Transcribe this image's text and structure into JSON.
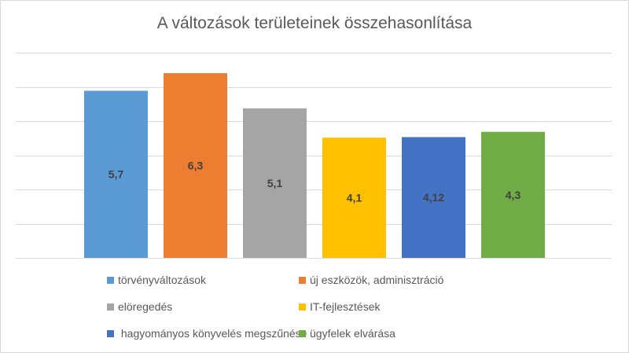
{
  "chart_data": {
    "type": "bar",
    "title": "A változások területeinek összehasonlítása",
    "xlabel": "",
    "ylabel": "",
    "ylim": [
      0,
      7
    ],
    "grid": true,
    "legend_position": "bottom",
    "series": [
      {
        "name": "törvényváltozások",
        "value": 5.7,
        "label": "5,7",
        "color": "#5B9BD5"
      },
      {
        "name": "új eszközök, adminisztráció",
        "value": 6.3,
        "label": "6,3",
        "color": "#ED7D31"
      },
      {
        "name": "elöregedés",
        "value": 5.1,
        "label": "5,1",
        "color": "#A5A5A5"
      },
      {
        "name": "IT-fejlesztések",
        "value": 4.1,
        "label": "4,1",
        "color": "#FFC000"
      },
      {
        "name": " hagyományos könyvelés megszűnése",
        "value": 4.12,
        "label": "4,12",
        "color": "#4472C4"
      },
      {
        "name": "ügyfelek elvárása",
        "value": 4.3,
        "label": "4,3",
        "color": "#70AD47"
      }
    ]
  }
}
